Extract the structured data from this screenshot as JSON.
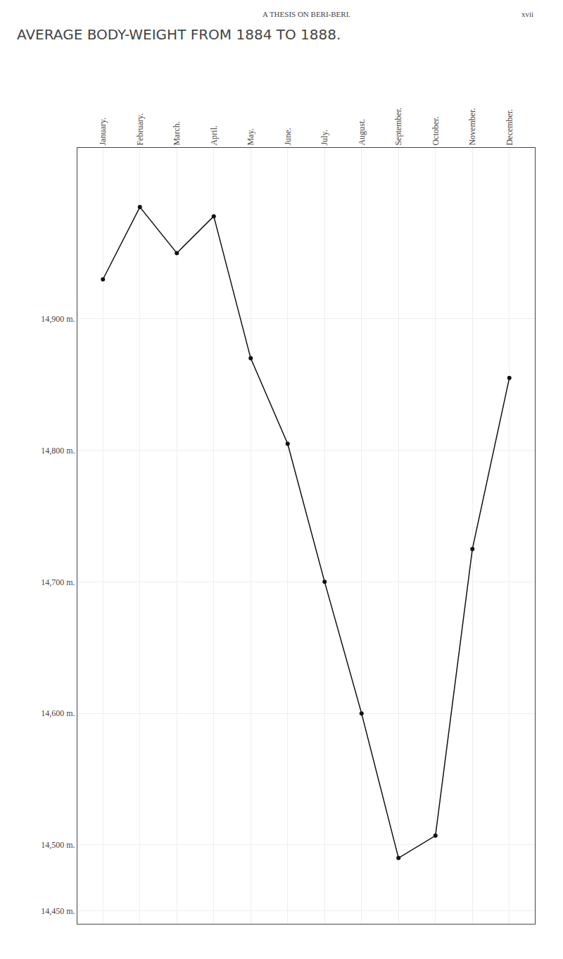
{
  "chart_data": {
    "type": "line",
    "title": "AVERAGE BODY-WEIGHT FROM 1884 TO 1888.",
    "annotations": [
      "A THESIS ON BERI-BERI.",
      "xvii"
    ],
    "categories": [
      "January.",
      "February.",
      "March.",
      "April.",
      "May.",
      "June.",
      "July.",
      "August.",
      "September.",
      "October.",
      "November.",
      "December."
    ],
    "values": [
      14930,
      14985,
      14950,
      14978,
      14870,
      14805,
      14700,
      14600,
      14490,
      14507,
      14725,
      14855
    ],
    "color": "#111111",
    "marker": "circle",
    "ylim": [
      14440,
      15030
    ],
    "yticks": [
      {
        "value": 14450,
        "label": "14,450 m."
      },
      {
        "value": 14500,
        "label": "14,500 m."
      },
      {
        "value": 14600,
        "label": "14,600 m."
      },
      {
        "value": 14700,
        "label": "14,700 m."
      },
      {
        "value": 14800,
        "label": "14,800 m."
      },
      {
        "value": 14900,
        "label": "14,900 m."
      }
    ],
    "grid": true
  }
}
